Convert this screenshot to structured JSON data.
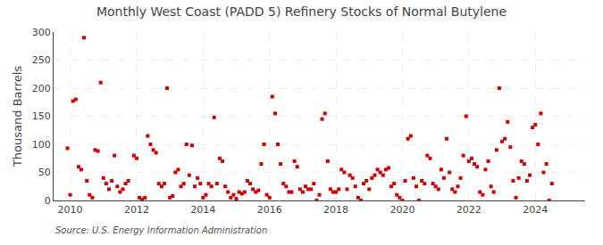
{
  "chart_data": {
    "type": "scatter",
    "title": "Monthly West Coast (PADD 5) Refinery Stocks of Normal Butylene",
    "ylabel": "Thousand Barrels",
    "annotations": [
      "Source: U.S. Energy Information Administration"
    ],
    "color": "#cc0000",
    "marker": "square",
    "grid": true,
    "xlim": [
      2009.5,
      2025.5
    ],
    "xticks": [
      2010,
      2012,
      2014,
      2016,
      2018,
      2020,
      2022,
      2024
    ],
    "ylim": [
      0,
      300
    ],
    "yticks": [
      0,
      50,
      100,
      150,
      200,
      250,
      300
    ],
    "x": [
      2009.917,
      2010.0,
      2010.083,
      2010.167,
      2010.25,
      2010.333,
      2010.417,
      2010.5,
      2010.583,
      2010.667,
      2010.75,
      2010.833,
      2010.917,
      2011.0,
      2011.083,
      2011.167,
      2011.25,
      2011.333,
      2011.417,
      2011.5,
      2011.583,
      2011.667,
      2011.75,
      2011.917,
      2012.0,
      2012.083,
      2012.167,
      2012.25,
      2012.333,
      2012.417,
      2012.5,
      2012.583,
      2012.667,
      2012.75,
      2012.833,
      2012.917,
      2013.0,
      2013.083,
      2013.167,
      2013.25,
      2013.333,
      2013.417,
      2013.5,
      2013.583,
      2013.667,
      2013.75,
      2013.833,
      2013.917,
      2014.0,
      2014.083,
      2014.167,
      2014.25,
      2014.333,
      2014.417,
      2014.5,
      2014.583,
      2014.667,
      2014.75,
      2014.833,
      2014.917,
      2015.0,
      2015.083,
      2015.167,
      2015.25,
      2015.333,
      2015.417,
      2015.5,
      2015.583,
      2015.667,
      2015.75,
      2015.833,
      2015.917,
      2016.0,
      2016.083,
      2016.167,
      2016.25,
      2016.333,
      2016.417,
      2016.5,
      2016.583,
      2016.667,
      2016.75,
      2016.833,
      2016.917,
      2017.0,
      2017.083,
      2017.167,
      2017.25,
      2017.333,
      2017.417,
      2017.5,
      2017.583,
      2017.667,
      2017.75,
      2017.833,
      2017.917,
      2018.0,
      2018.083,
      2018.167,
      2018.25,
      2018.333,
      2018.417,
      2018.5,
      2018.583,
      2018.667,
      2018.75,
      2018.833,
      2018.917,
      2019.0,
      2019.083,
      2019.167,
      2019.25,
      2019.333,
      2019.417,
      2019.5,
      2019.583,
      2019.667,
      2019.75,
      2019.833,
      2019.917,
      2020.0,
      2020.083,
      2020.167,
      2020.25,
      2020.333,
      2020.417,
      2020.5,
      2020.583,
      2020.667,
      2020.75,
      2020.833,
      2020.917,
      2021.0,
      2021.083,
      2021.167,
      2021.25,
      2021.333,
      2021.417,
      2021.5,
      2021.583,
      2021.667,
      2021.75,
      2021.833,
      2021.917,
      2022.0,
      2022.083,
      2022.167,
      2022.25,
      2022.333,
      2022.417,
      2022.5,
      2022.583,
      2022.667,
      2022.75,
      2022.833,
      2022.917,
      2023.0,
      2023.083,
      2023.167,
      2023.25,
      2023.333,
      2023.417,
      2023.5,
      2023.583,
      2023.667,
      2023.75,
      2023.833,
      2023.917,
      2024.0,
      2024.083,
      2024.167,
      2024.25,
      2024.333,
      2024.417,
      2024.5
    ],
    "values": [
      93,
      10,
      177,
      180,
      60,
      55,
      290,
      35,
      10,
      5,
      90,
      88,
      210,
      40,
      30,
      20,
      35,
      80,
      25,
      15,
      20,
      30,
      35,
      80,
      75,
      5,
      2,
      5,
      115,
      100,
      90,
      85,
      30,
      25,
      30,
      200,
      5,
      8,
      50,
      55,
      25,
      30,
      100,
      45,
      98,
      25,
      40,
      30,
      5,
      10,
      30,
      25,
      148,
      30,
      75,
      70,
      25,
      15,
      5,
      10,
      3,
      15,
      12,
      15,
      35,
      30,
      20,
      15,
      18,
      65,
      100,
      10,
      5,
      185,
      155,
      100,
      65,
      30,
      25,
      15,
      15,
      70,
      60,
      20,
      15,
      25,
      20,
      20,
      30,
      0,
      10,
      145,
      155,
      70,
      20,
      15,
      15,
      20,
      55,
      50,
      20,
      45,
      40,
      25,
      5,
      0,
      30,
      35,
      20,
      40,
      45,
      55,
      50,
      45,
      55,
      58,
      25,
      30,
      10,
      5,
      0,
      35,
      110,
      115,
      40,
      25,
      0,
      35,
      30,
      80,
      75,
      30,
      25,
      20,
      55,
      40,
      110,
      50,
      20,
      15,
      25,
      40,
      80,
      150,
      70,
      75,
      65,
      60,
      15,
      10,
      55,
      70,
      25,
      15,
      90,
      200,
      105,
      110,
      140,
      95,
      35,
      5,
      40,
      70,
      65,
      35,
      45,
      130,
      135,
      100,
      155,
      50,
      65,
      0,
      30
    ]
  }
}
